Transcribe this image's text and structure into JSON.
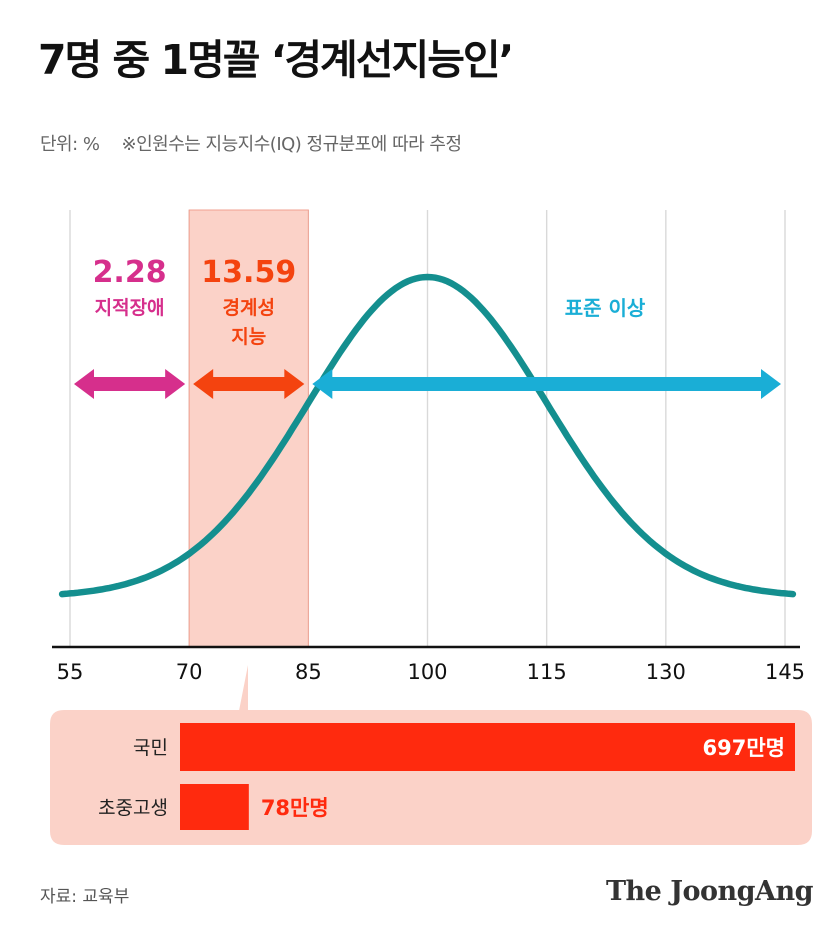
{
  "header": {
    "title": "7명 중 1명꼴 ‘경계선지능인’",
    "unit": "단위: %",
    "note": "※인원수는 지능지수(IQ) 정규분포에 따라 추정"
  },
  "chart_data": [
    {
      "type": "line",
      "title": "",
      "x_ticks": [
        55,
        70,
        85,
        100,
        115,
        130,
        145
      ],
      "xlim": [
        55,
        145
      ],
      "bands": [
        {
          "from": 55,
          "to": 70,
          "label": "지적장애",
          "value": "2.28",
          "color": "#d62f8c"
        },
        {
          "from": 70,
          "to": 85,
          "label": "경계성 지능",
          "label_lines": [
            "경계성",
            "지능"
          ],
          "value": "13.59",
          "color": "#f4430f"
        },
        {
          "from": 85,
          "to": 145,
          "label": "표준 이상",
          "color": "#1aaed6"
        }
      ],
      "highlight_range": [
        70,
        85
      ],
      "grid": true,
      "curve_color": "#148f8f"
    },
    {
      "type": "bar",
      "orientation": "horizontal",
      "categories": [
        "국민",
        "초중고생"
      ],
      "values": [
        697,
        78
      ],
      "value_labels": [
        "697만명",
        "78만명"
      ],
      "unit": "만명",
      "bar_color": "#ff2a0e",
      "panel_color": "#fbd2c8"
    }
  ],
  "footer": {
    "source": "자료: 교육부",
    "logo": "The JoongAng"
  }
}
